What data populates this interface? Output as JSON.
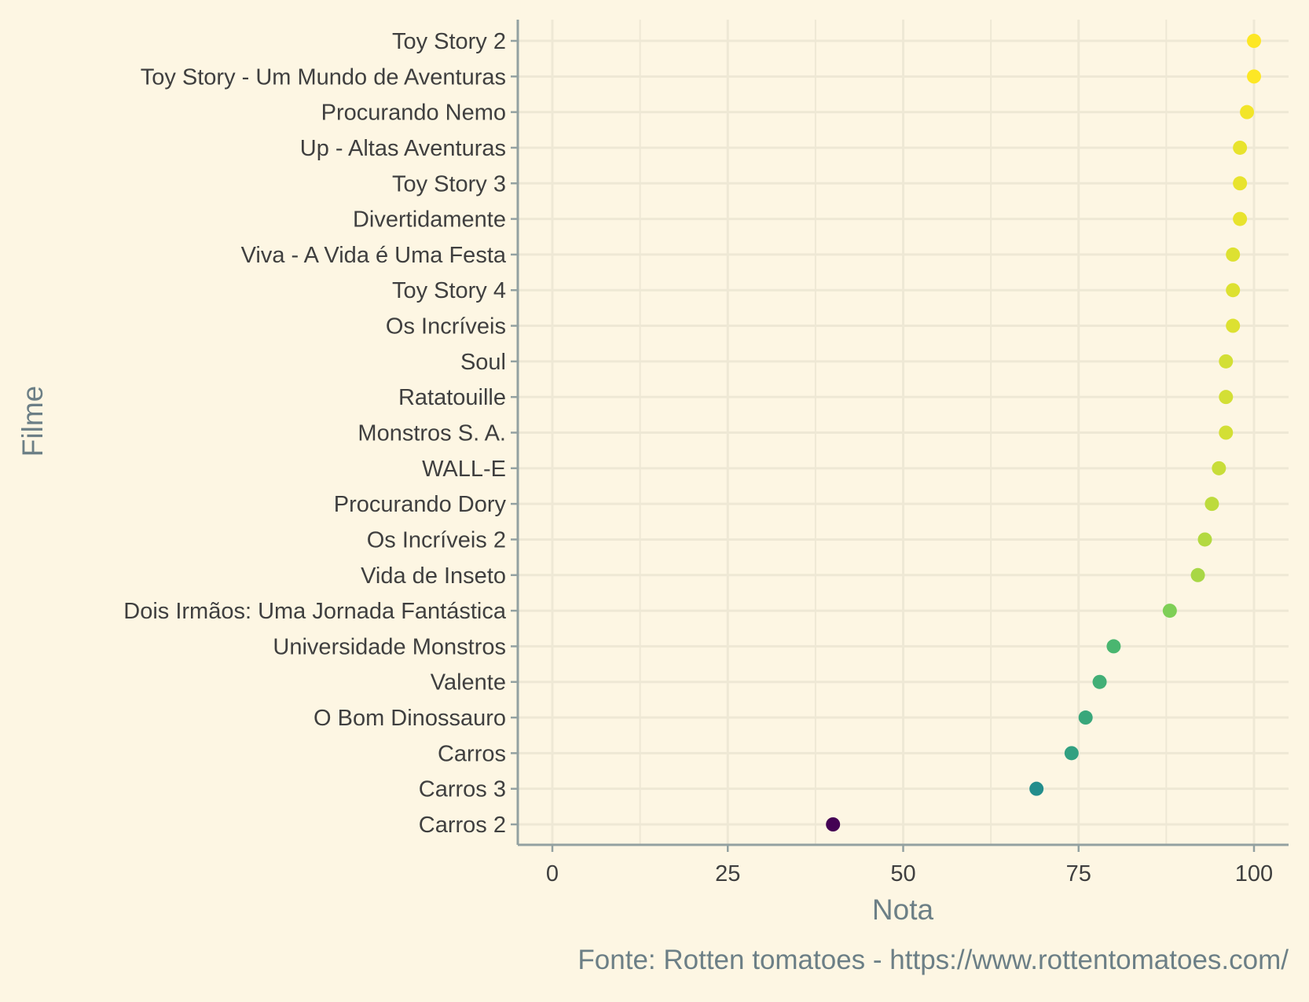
{
  "chart_data": {
    "type": "scatter",
    "xlabel": "Nota",
    "ylabel": "Filme",
    "caption": "Fonte: Rotten tomatoes - https://www.rottentomatoes.com/",
    "xlim": [
      -5,
      105
    ],
    "xticks": [
      0,
      25,
      50,
      75,
      100
    ],
    "grid": true,
    "legend": "none",
    "points": [
      {
        "filme": "Toy Story 2",
        "nota": 100
      },
      {
        "filme": "Toy Story - Um Mundo de Aventuras",
        "nota": 100
      },
      {
        "filme": "Procurando Nemo",
        "nota": 99
      },
      {
        "filme": "Up - Altas Aventuras",
        "nota": 98
      },
      {
        "filme": "Toy Story 3",
        "nota": 98
      },
      {
        "filme": "Divertidamente",
        "nota": 98
      },
      {
        "filme": "Viva - A Vida é Uma Festa",
        "nota": 97
      },
      {
        "filme": "Toy Story 4",
        "nota": 97
      },
      {
        "filme": "Os Incríveis",
        "nota": 97
      },
      {
        "filme": "Soul",
        "nota": 96
      },
      {
        "filme": "Ratatouille",
        "nota": 96
      },
      {
        "filme": "Monstros S. A.",
        "nota": 96
      },
      {
        "filme": "WALL-E",
        "nota": 95
      },
      {
        "filme": "Procurando Dory",
        "nota": 94
      },
      {
        "filme": "Os Incríveis 2",
        "nota": 93
      },
      {
        "filme": "Vida de Inseto",
        "nota": 92
      },
      {
        "filme": "Dois Irmãos: Uma Jornada Fantástica",
        "nota": 88
      },
      {
        "filme": "Universidade Monstros",
        "nota": 80
      },
      {
        "filme": "Valente",
        "nota": 78
      },
      {
        "filme": "O Bom Dinossauro",
        "nota": 76
      },
      {
        "filme": "Carros",
        "nota": 74
      },
      {
        "filme": "Carros 3",
        "nota": 69
      },
      {
        "filme": "Carros 2",
        "nota": 40
      }
    ]
  },
  "colors": {
    "background": "#fdf6e3",
    "grid": "#eee8d5",
    "axis": "#93a1a1",
    "tick_text": "#3f3f3f",
    "title_text": "#6c7f86",
    "palette": "viridis"
  }
}
